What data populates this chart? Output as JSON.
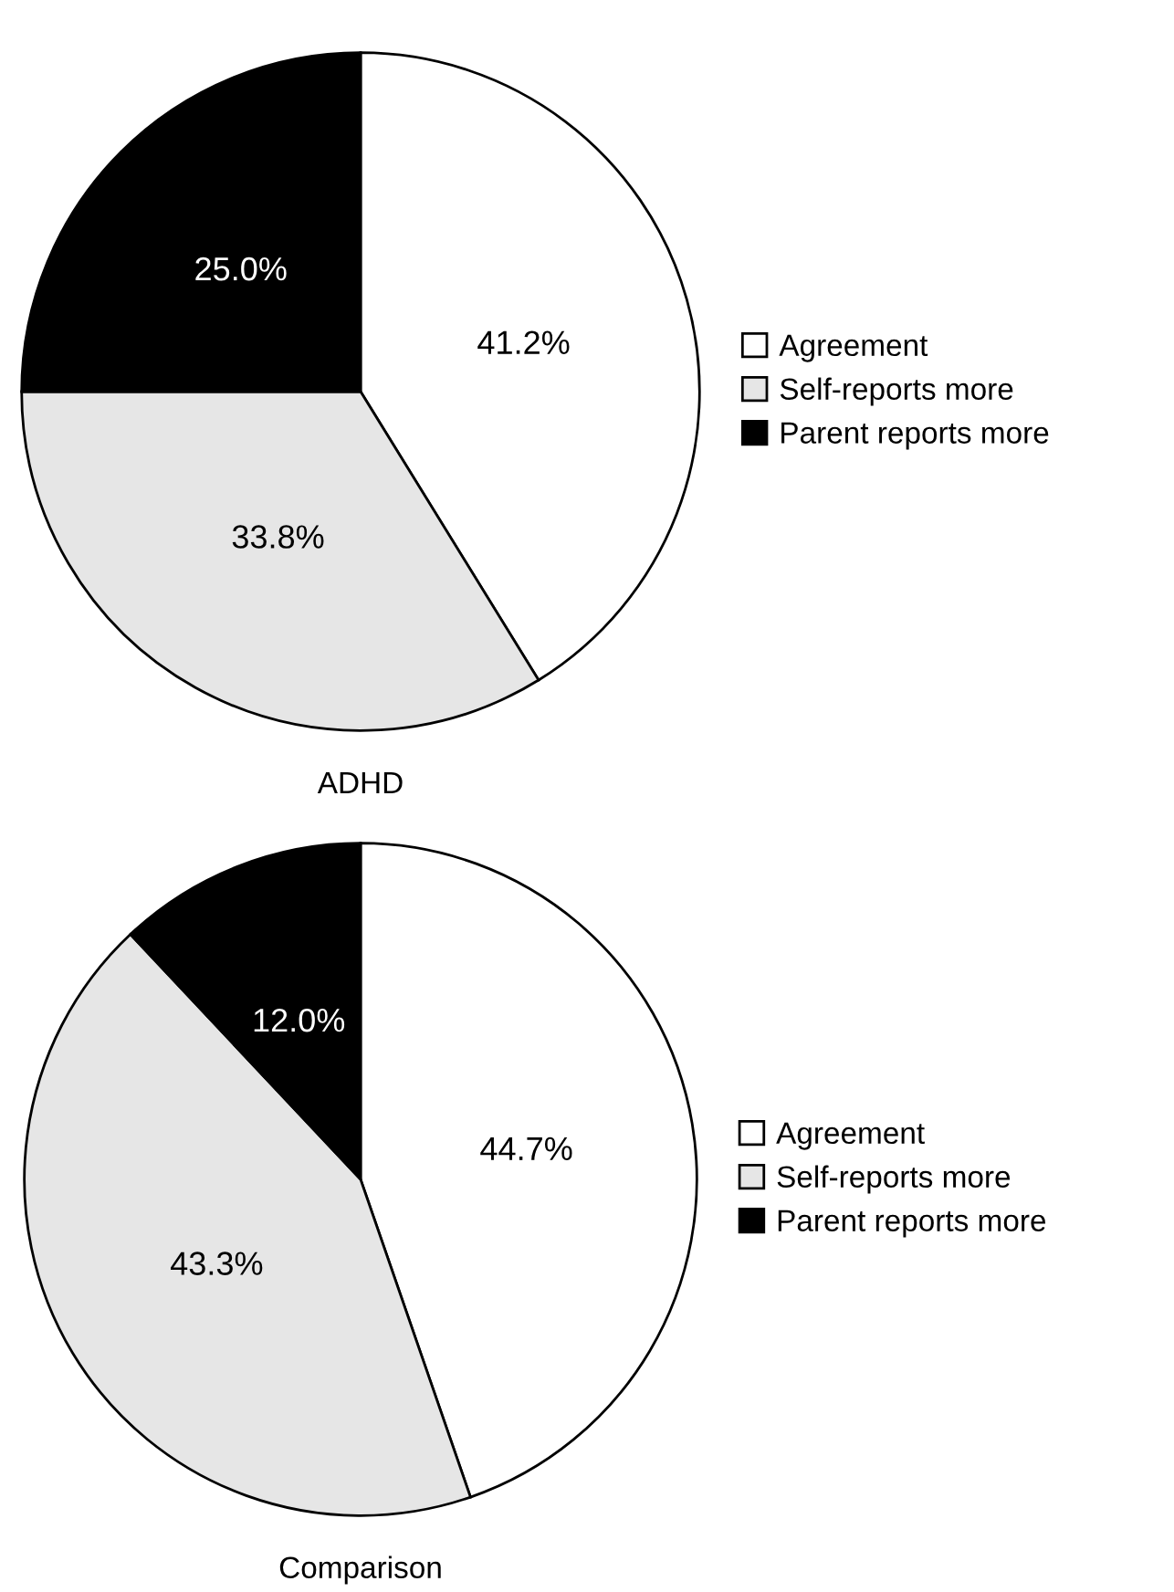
{
  "chart_data": [
    {
      "type": "pie",
      "xlabel": "ADHD",
      "categories": [
        "Agreement",
        "Self-reports more",
        "Parent reports more"
      ],
      "values": [
        41.2,
        33.8,
        25.0
      ],
      "value_labels": [
        "41.2%",
        "33.8%",
        "25.0%"
      ],
      "colors": [
        "#ffffff",
        "#e6e6e6",
        "#000000"
      ],
      "legend": "right"
    },
    {
      "type": "pie",
      "xlabel": "Comparison",
      "categories": [
        "Agreement",
        "Self-reports more",
        "Parent reports more"
      ],
      "values": [
        44.7,
        43.3,
        12.0
      ],
      "value_labels": [
        "44.7%",
        "43.3%",
        "12.0%"
      ],
      "colors": [
        "#ffffff",
        "#e6e6e6",
        "#000000"
      ],
      "legend": "right"
    }
  ]
}
